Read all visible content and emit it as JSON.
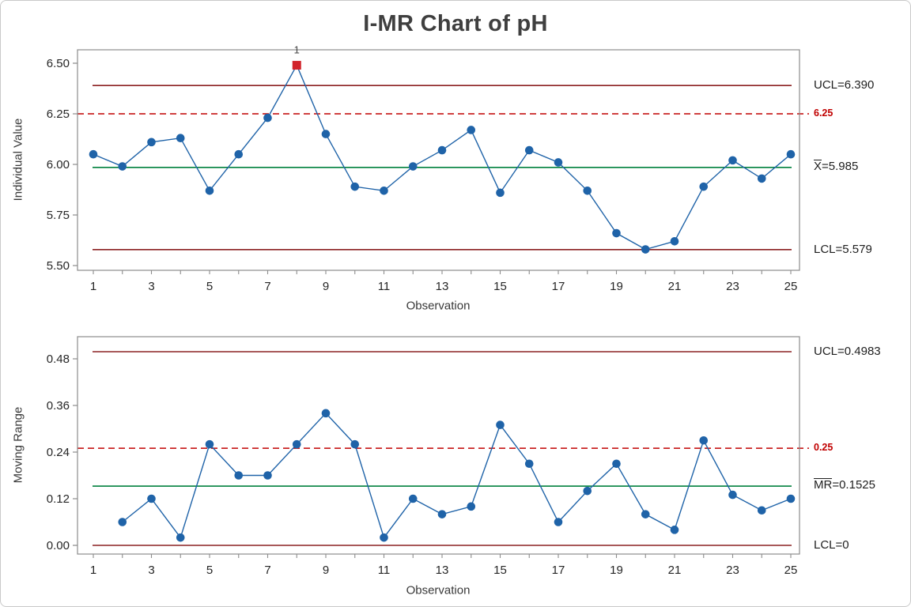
{
  "title": "I-MR Chart of pH",
  "colors": {
    "series_blue": "#1F63A8",
    "limit_maroon": "#8B2022",
    "center_green": "#00813D",
    "ref_red": "#C00000",
    "flag_red": "#D2232A",
    "axis_gray": "#8C8C8C",
    "tick_text": "#262626",
    "flag_text": "#444444"
  },
  "chart_data": [
    {
      "type": "line",
      "name": "individuals",
      "ylabel": "Individual Value",
      "xlabel": "Observation",
      "x": [
        1,
        2,
        3,
        4,
        5,
        6,
        7,
        8,
        9,
        10,
        11,
        12,
        13,
        14,
        15,
        16,
        17,
        18,
        19,
        20,
        21,
        22,
        23,
        24,
        25
      ],
      "values": [
        6.05,
        5.99,
        6.11,
        6.13,
        5.87,
        6.05,
        6.23,
        6.49,
        6.15,
        5.89,
        5.87,
        5.99,
        6.07,
        6.17,
        5.86,
        6.07,
        6.01,
        5.87,
        5.66,
        5.58,
        5.62,
        5.89,
        6.02,
        5.93,
        6.05
      ],
      "yticks": [
        "5.50",
        "5.75",
        "6.00",
        "6.25",
        "6.50"
      ],
      "ylim": [
        5.5,
        6.5
      ],
      "xtick_labels": [
        1,
        3,
        5,
        7,
        9,
        11,
        13,
        15,
        17,
        19,
        21,
        23,
        25
      ],
      "grid": "off",
      "ucl": 6.39,
      "center": 5.985,
      "lcl": 5.579,
      "ref_line": 6.25,
      "flagged": [
        {
          "x": 8,
          "label": "1"
        }
      ],
      "annotations": {
        "ucl": "UCL=6.390",
        "ref": "6.25",
        "center_bar": "X",
        "center_rest": "=5.985",
        "lcl": "LCL=5.579"
      }
    },
    {
      "type": "line",
      "name": "moving_range",
      "ylabel": "Moving Range",
      "xlabel": "Observation",
      "x": [
        1,
        2,
        3,
        4,
        5,
        6,
        7,
        8,
        9,
        10,
        11,
        12,
        13,
        14,
        15,
        16,
        17,
        18,
        19,
        20,
        21,
        22,
        23,
        24,
        25
      ],
      "values": [
        null,
        0.06,
        0.12,
        0.02,
        0.26,
        0.18,
        0.18,
        0.26,
        0.34,
        0.26,
        0.02,
        0.12,
        0.08,
        0.1,
        0.31,
        0.21,
        0.06,
        0.14,
        0.21,
        0.08,
        0.04,
        0.27,
        0.13,
        0.09,
        0.12
      ],
      "yticks": [
        "0.00",
        "0.12",
        "0.24",
        "0.36",
        "0.48"
      ],
      "ylim": [
        0.0,
        0.48
      ],
      "xtick_labels": [
        1,
        3,
        5,
        7,
        9,
        11,
        13,
        15,
        17,
        19,
        21,
        23,
        25
      ],
      "grid": "off",
      "ucl": 0.4983,
      "center": 0.1525,
      "lcl": 0,
      "ref_line": 0.25,
      "flagged": [],
      "annotations": {
        "ucl": "UCL=0.4983",
        "ref": "0.25",
        "center_bar": "MR",
        "center_rest": "=0.1525",
        "lcl": "LCL=0"
      }
    }
  ]
}
